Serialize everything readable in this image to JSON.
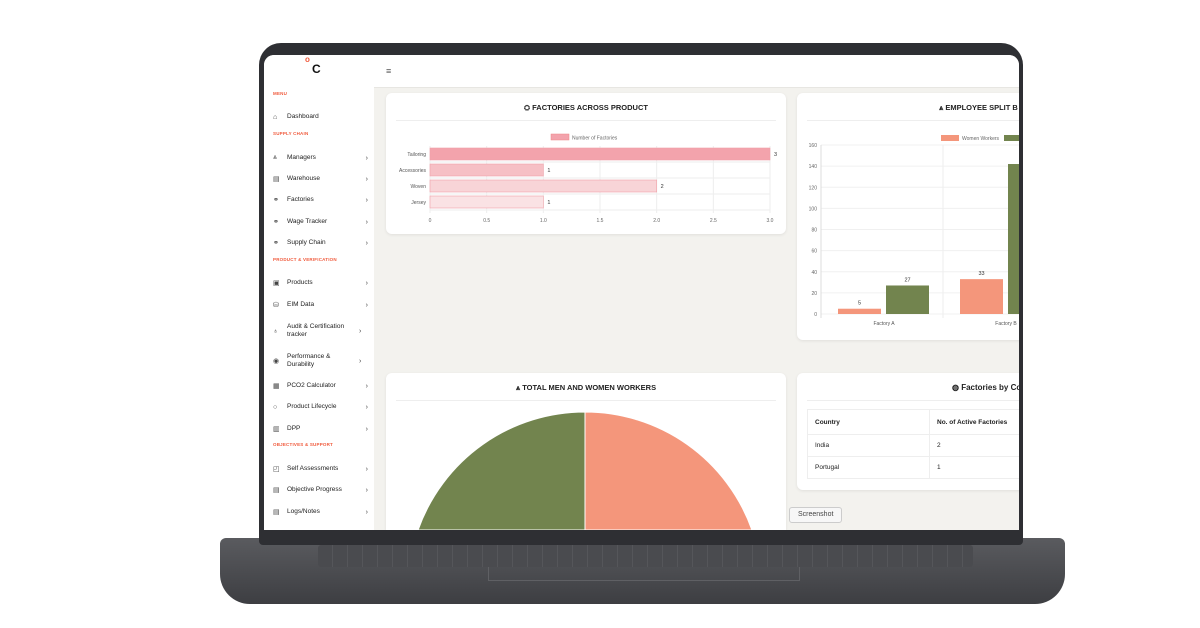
{
  "logo": {
    "o": "o",
    "c": "C"
  },
  "sidebar": {
    "sections": [
      "MENU",
      "SUPPLY CHAIN",
      "PRODUCT & VERIFICATION",
      "OBJECTIVES & SUPPORT"
    ],
    "items": [
      {
        "label": "Dashboard",
        "icon": "home-icon",
        "glyph": "⌂",
        "chevron": false
      },
      {
        "label": "Managers",
        "icon": "users-icon",
        "glyph": "⩓",
        "chevron": true
      },
      {
        "label": "Warehouse",
        "icon": "warehouse-icon",
        "glyph": "▤",
        "chevron": true
      },
      {
        "label": "Factories",
        "icon": "link-icon",
        "glyph": "⚭",
        "chevron": true
      },
      {
        "label": "Wage Tracker",
        "icon": "link-icon",
        "glyph": "⚭",
        "chevron": true
      },
      {
        "label": "Supply Chain",
        "icon": "link-icon",
        "glyph": "⚭",
        "chevron": true
      },
      {
        "label": "Products",
        "icon": "clipboard-icon",
        "glyph": "▣",
        "chevron": true
      },
      {
        "label": "EIM Data",
        "icon": "database-icon",
        "glyph": "⛁",
        "chevron": true
      },
      {
        "label": "Audit & Certification tracker",
        "icon": "award-icon",
        "glyph": "♁",
        "chevron": true
      },
      {
        "label": "Performance & Durability",
        "icon": "gauge-icon",
        "glyph": "◉",
        "chevron": true
      },
      {
        "label": "PCO2 Calculator",
        "icon": "calculator-icon",
        "glyph": "▦",
        "chevron": true
      },
      {
        "label": "Product Lifecycle",
        "icon": "cycle-icon",
        "glyph": "○",
        "chevron": true
      },
      {
        "label": "DPP",
        "icon": "document-icon",
        "glyph": "▥",
        "chevron": true
      },
      {
        "label": "Self Assessments",
        "icon": "edit-icon",
        "glyph": "◰",
        "chevron": true
      },
      {
        "label": "Objective Progress",
        "icon": "file-icon",
        "glyph": "▤",
        "chevron": true
      },
      {
        "label": "Logs/Notes",
        "icon": "file-icon",
        "glyph": "▤",
        "chevron": true
      }
    ],
    "chevron_glyph": "›"
  },
  "header": {
    "menu_icon": "≡"
  },
  "cards": {
    "factories_product": {
      "title": "FACTORIES ACROSS PRODUCT",
      "icon": "⛭"
    },
    "employee_split": {
      "title": "EMPLOYEE SPLIT B",
      "icon": "⩓"
    },
    "total_workers": {
      "title": "TOTAL MEN AND WOMEN WORKERS",
      "icon": "⩓"
    },
    "factories_country": {
      "title": "Factories by Co",
      "icon": "◍",
      "columns": [
        "Country",
        "No. of Active Factories"
      ],
      "rows": [
        [
          "India",
          "2"
        ],
        [
          "Portugal",
          "1"
        ]
      ]
    }
  },
  "screenshot_button": "Screenshot",
  "chart_data": [
    {
      "type": "bar",
      "orientation": "horizontal",
      "categories": [
        "Tailoring",
        "Accessories",
        "Woven",
        "Jersey"
      ],
      "series": [
        {
          "name": "Number of Factories",
          "values": [
            3,
            1,
            2,
            1
          ]
        }
      ],
      "data_labels": [
        "3",
        "1",
        "2",
        "1"
      ],
      "xlim": [
        0,
        3
      ],
      "xticks": [
        "0",
        "0.5",
        "1.0",
        "1.5",
        "2.0",
        "2.5",
        "3.0"
      ],
      "legend": "top",
      "grid": true,
      "colors": [
        "#f3a3ac",
        "#f6c0c5",
        "#f8d4d7",
        "#fae2e4"
      ]
    },
    {
      "type": "bar",
      "categories": [
        "Factory A",
        "Factory B"
      ],
      "series": [
        {
          "name": "Women Workers",
          "values": [
            5,
            33
          ],
          "color": "#f4967b"
        },
        {
          "name": "",
          "values": [
            27,
            142
          ],
          "color": "#72844e"
        }
      ],
      "ylim": [
        0,
        160
      ],
      "yticks": [
        "0",
        "20",
        "40",
        "60",
        "80",
        "100",
        "120",
        "140",
        "160"
      ],
      "legend": "top",
      "grid": true
    },
    {
      "type": "pie",
      "slices": [
        {
          "color": "#72844e",
          "share": 0.5
        },
        {
          "color": "#f4967b",
          "share": 0.5
        }
      ]
    }
  ]
}
